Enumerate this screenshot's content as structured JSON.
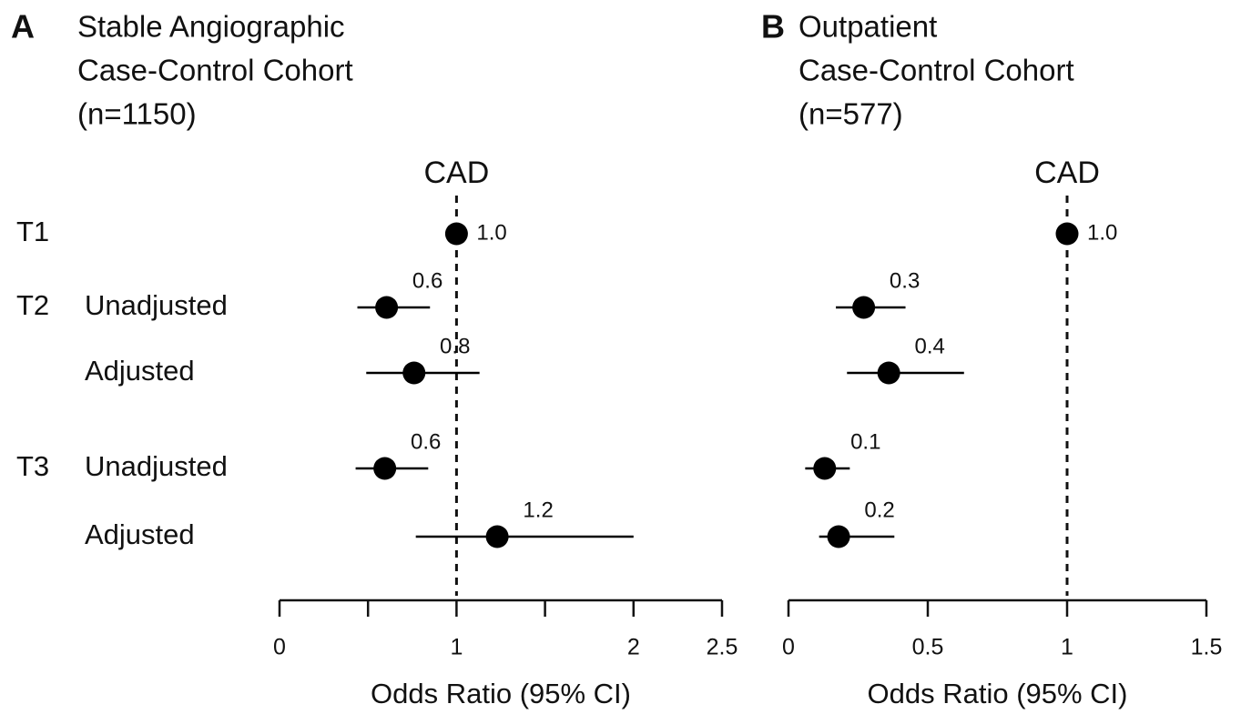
{
  "chart_data": [
    {
      "type": "forest",
      "panel_label": "A",
      "title": [
        "Stable Angiographic",
        "Case-Control Cohort",
        "(n=1150)"
      ],
      "reference_label": "CAD",
      "reference_line": 1,
      "groups": [
        "T1",
        "T2",
        null,
        "T3",
        null
      ],
      "categories": [
        null,
        "Unadjusted",
        "Adjusted",
        "Unadjusted",
        "Adjusted"
      ],
      "values": [
        1,
        0.605,
        0.76,
        0.595,
        1.23
      ],
      "value_labels": [
        "1.0",
        "0.6",
        "0.8",
        "0.6",
        "1.2"
      ],
      "ci_low": [
        null,
        0.44,
        0.49,
        0.43,
        0.77
      ],
      "ci_high": [
        null,
        0.85,
        1.13,
        0.84,
        2.0
      ],
      "color": "#000000",
      "xlim": [
        0,
        2.5
      ],
      "xticks": [
        0,
        1,
        2,
        2.5
      ],
      "minor_xticks": [
        0.5,
        1.5
      ],
      "xlabel": "Odds Ratio (95% CI)"
    },
    {
      "type": "forest",
      "panel_label": "B",
      "title": [
        "Outpatient",
        "Case-Control Cohort",
        "(n=577)"
      ],
      "reference_label": "CAD",
      "reference_line": 1,
      "values": [
        1,
        0.27,
        0.36,
        0.13,
        0.18
      ],
      "value_labels": [
        "1.0",
        "0.3",
        "0.4",
        "0.1",
        "0.2"
      ],
      "ci_low": [
        null,
        0.17,
        0.21,
        0.06,
        0.11
      ],
      "ci_high": [
        null,
        0.42,
        0.63,
        0.22,
        0.38
      ],
      "color": "#000000",
      "xlim": [
        0,
        1.5
      ],
      "xticks": [
        0,
        0.5,
        1,
        1.5
      ],
      "xlabel": "Odds Ratio (95% CI)"
    }
  ]
}
